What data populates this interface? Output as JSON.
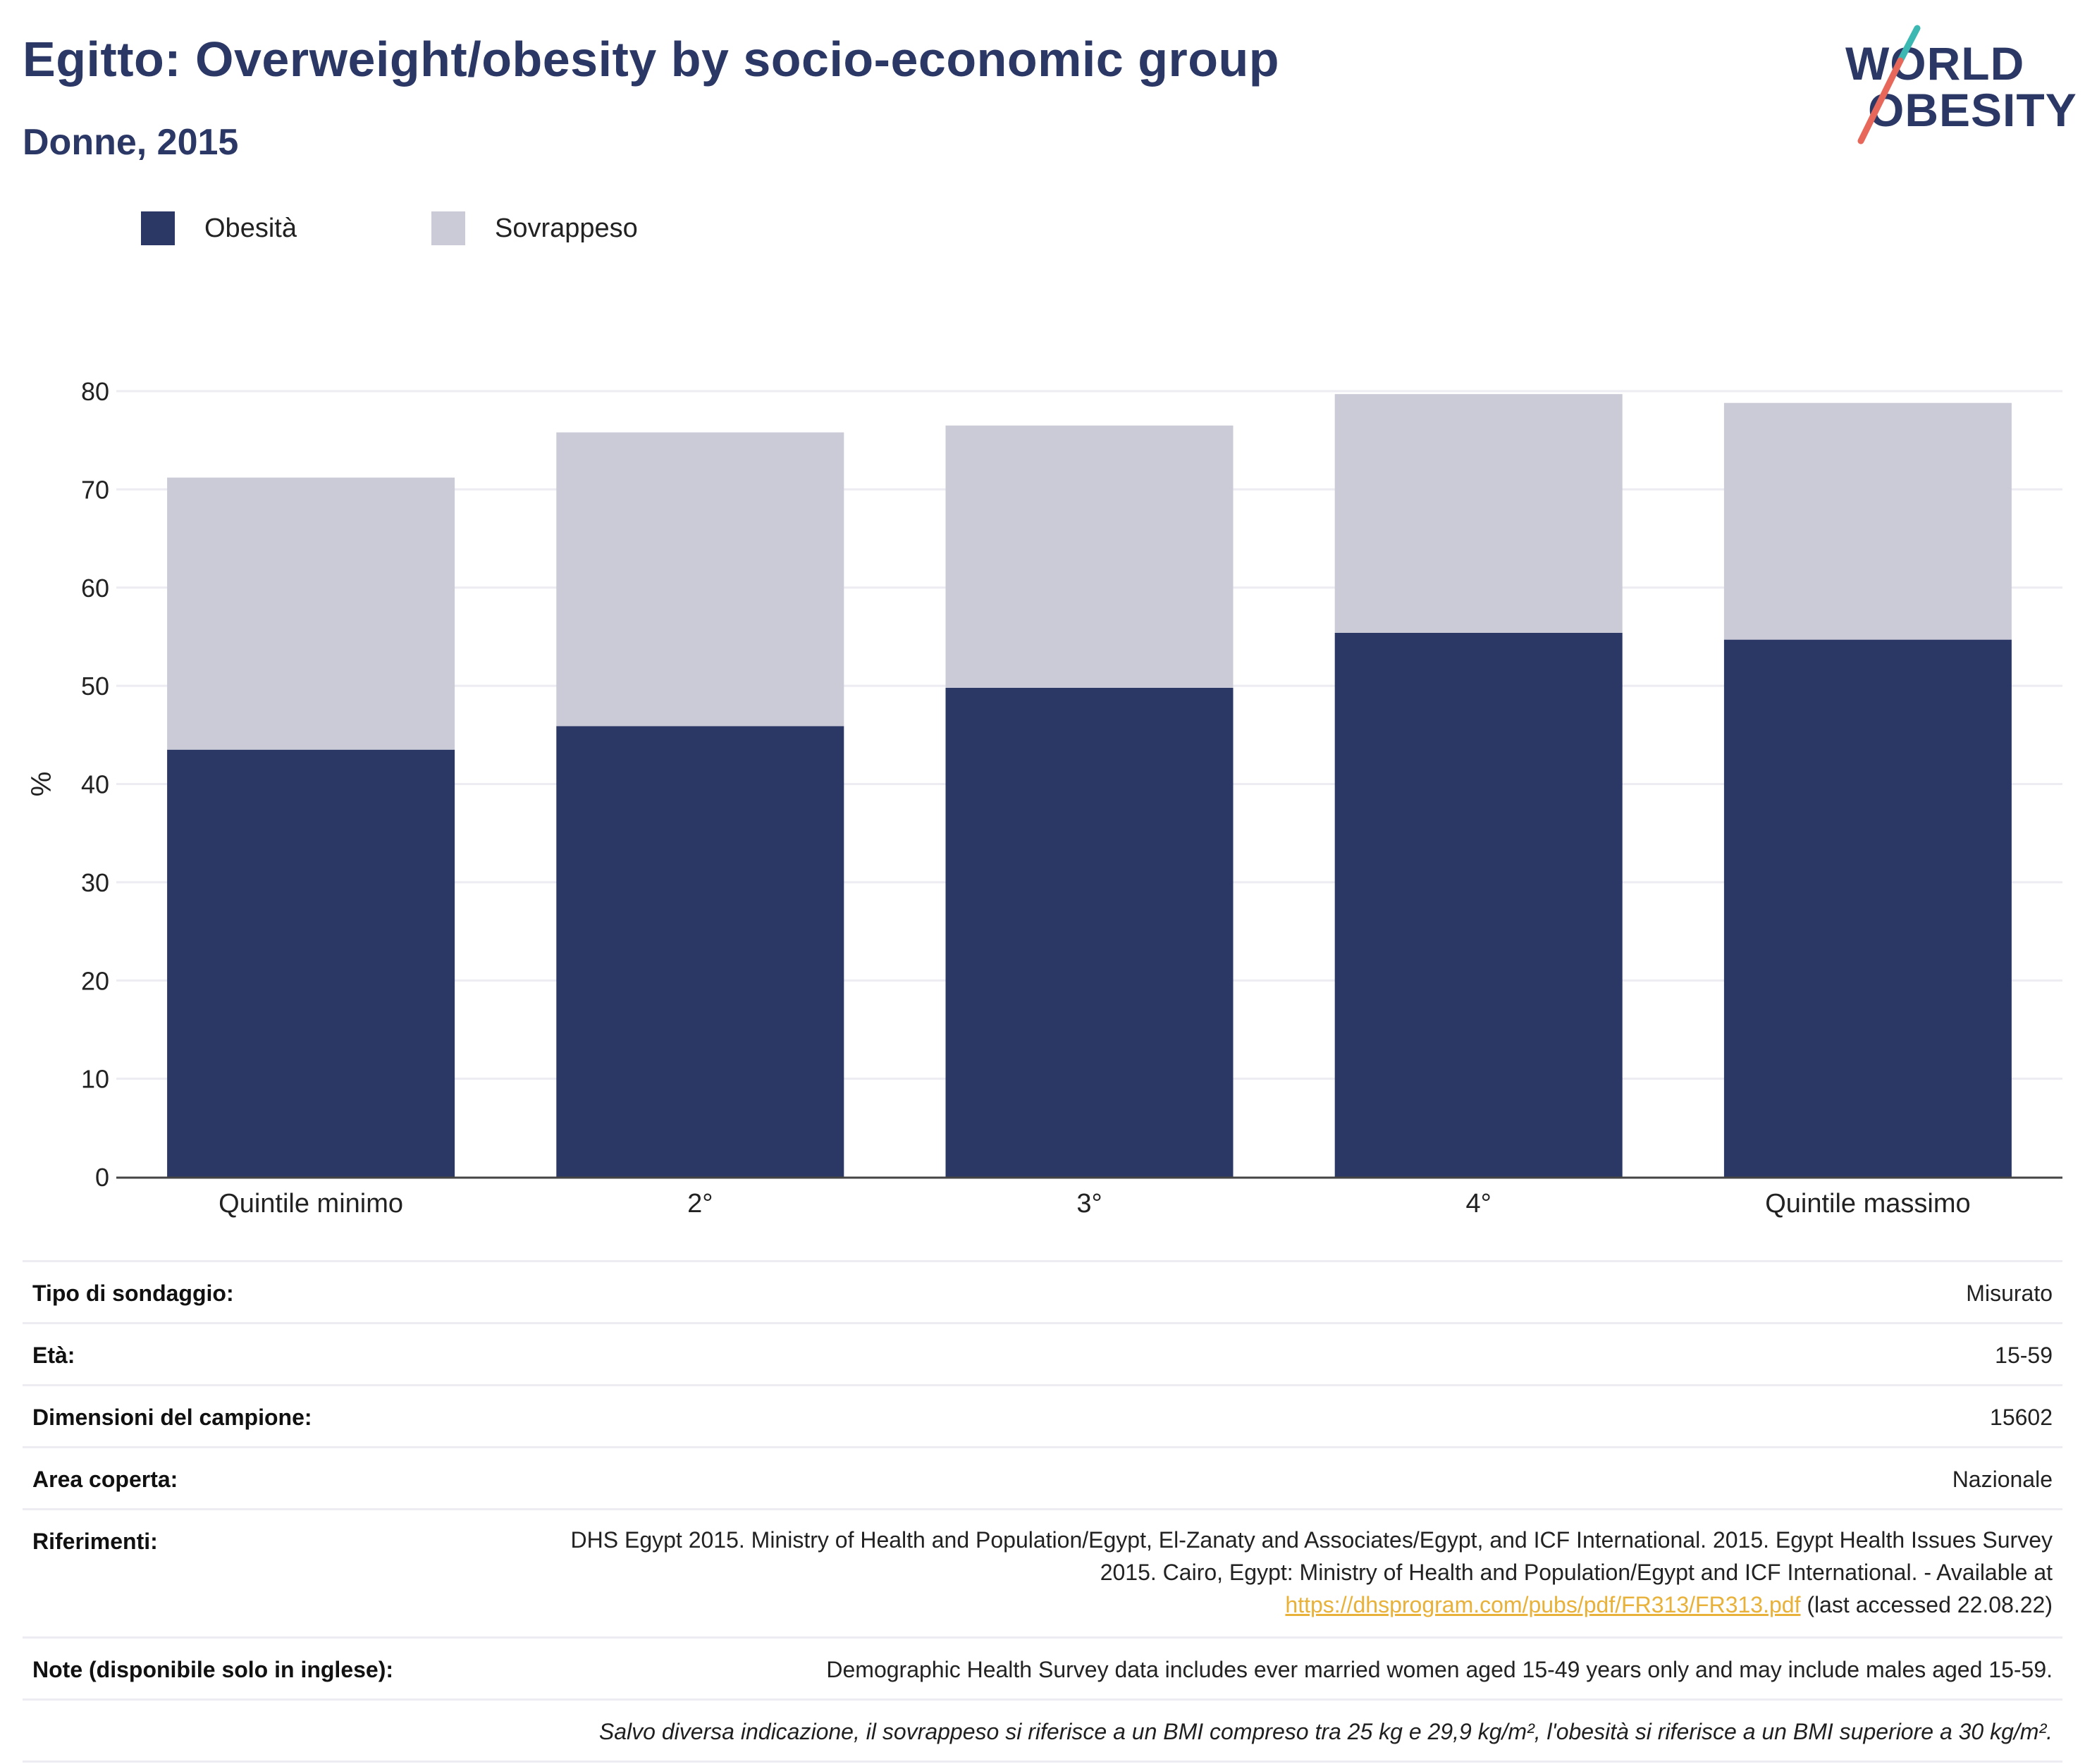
{
  "header": {
    "title": "Egitto: Overweight/obesity by socio-economic group",
    "subtitle": "Donne, 2015",
    "logo": {
      "line1": "WORLD",
      "line2": "OBESITY"
    }
  },
  "colors": {
    "obesity": "#2b3765",
    "overweight": "#cacbd7",
    "title": "#2b3866",
    "logo_teal": "#3cb8b2",
    "logo_red": "#e7685a",
    "link": "#e8b13a"
  },
  "legend": [
    {
      "label": "Obesità",
      "color": "#2b3765"
    },
    {
      "label": "Sovrappeso",
      "color": "#cacbd7"
    }
  ],
  "chart_data": {
    "type": "bar",
    "stacked": true,
    "categories": [
      "Quintile minimo",
      "2°",
      "3°",
      "4°",
      "Quintile massimo"
    ],
    "series": [
      {
        "name": "Obesità",
        "values": [
          43.5,
          45.9,
          49.8,
          55.4,
          54.7
        ]
      },
      {
        "name": "Sovrappeso",
        "values": [
          27.7,
          29.9,
          26.7,
          24.3,
          24.1
        ]
      }
    ],
    "ylabel": "%",
    "ylim": [
      0,
      80
    ],
    "yticks": [
      0,
      10,
      20,
      30,
      40,
      50,
      60,
      70,
      80
    ],
    "grid": true,
    "legend_position": "top-left"
  },
  "info": {
    "survey_type": {
      "label": "Tipo di sondaggio:",
      "value": "Misurato"
    },
    "age": {
      "label": "Età:",
      "value": "15-59"
    },
    "sample_size": {
      "label": "Dimensioni del campione:",
      "value": "15602"
    },
    "area": {
      "label": "Area coperta:",
      "value": "Nazionale"
    },
    "references": {
      "label": "Riferimenti:",
      "text1": "DHS Egypt 2015. Ministry of Health and Population/Egypt, El-Zanaty and Associates/Egypt, and ICF International. 2015. Egypt Health Issues Survey 2015. Cairo, Egypt: Ministry of Health and Population/Egypt and ICF International. - Available at",
      "link": "https://dhsprogram.com/pubs/pdf/FR313/FR313.pdf",
      "text2": "(last accessed 22.08.22)"
    },
    "notes": {
      "label": "Note (disponibile solo in inglese):",
      "value": "Demographic Health Survey data includes ever married women aged 15-49 years only and may include males aged 15-59."
    },
    "footnote": "Salvo diversa indicazione, il sovrappeso si riferisce a un BMI compreso tra 25 kg e 29,9 kg/m², l'obesità si riferisce a un BMI superiore a 30 kg/m²."
  }
}
